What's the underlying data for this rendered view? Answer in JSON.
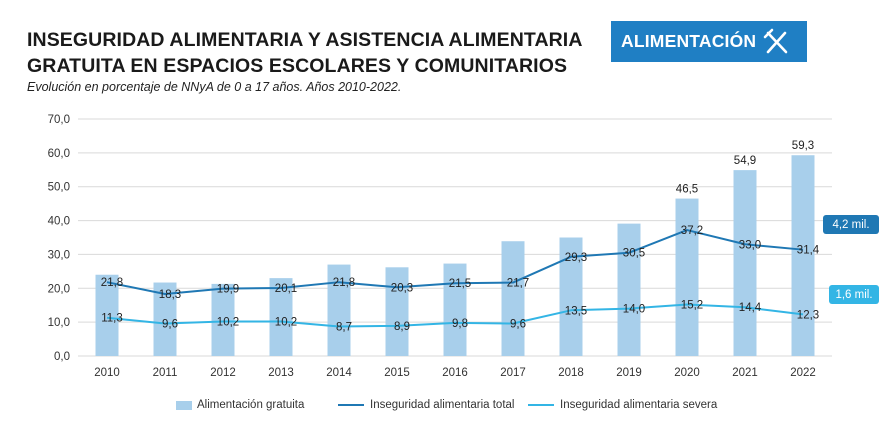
{
  "header": {
    "title_line1": "INSEGURIDAD ALIMENTARIA Y ASISTENCIA ALIMENTARIA",
    "title_line2": "GRATUITA EN ESPACIOS ESCOLARES Y COMUNITARIOS",
    "subtitle": "Evolución en porcentaje de NNyA de 0 a 17 años. Años 2010-2022.",
    "badge_label": "ALIMENTACIÓN",
    "badge_icon": "fork-knife-icon"
  },
  "colors": {
    "bar": "#a8cfeb",
    "total_line": "#1f78b4",
    "severe_line": "#33b5e5",
    "badge": "#1f7fc4",
    "grid": "#d9d9d9"
  },
  "chart_data": {
    "type": "bar+line",
    "categories": [
      "2010",
      "2011",
      "2012",
      "2013",
      "2014",
      "2015",
      "2016",
      "2017",
      "2018",
      "2019",
      "2020",
      "2021",
      "2022"
    ],
    "series": [
      {
        "name": "Alimentación gratuita",
        "kind": "bar",
        "values": [
          24.0,
          21.7,
          21.3,
          23.0,
          27.0,
          26.2,
          27.3,
          33.9,
          35.0,
          39.1,
          46.5,
          54.9,
          59.3
        ],
        "labels": [
          "",
          "",
          "",
          "",
          "",
          "",
          "",
          "",
          "",
          "",
          "46,5",
          "54,9",
          "59,3"
        ]
      },
      {
        "name": "Inseguridad alimentaria total",
        "kind": "line",
        "values": [
          21.8,
          18.3,
          19.9,
          20.1,
          21.8,
          20.3,
          21.5,
          21.7,
          29.3,
          30.5,
          37.2,
          33.0,
          31.4
        ],
        "labels": [
          "21,8",
          "18,3",
          "19,9",
          "20,1",
          "21,8",
          "20,3",
          "21,5",
          "21,7",
          "29,3",
          "30,5",
          "37,2",
          "33,0",
          "31,4"
        ]
      },
      {
        "name": "Inseguridad alimentaria severa",
        "kind": "line",
        "values": [
          11.3,
          9.6,
          10.2,
          10.2,
          8.7,
          8.9,
          9.8,
          9.6,
          13.5,
          14.0,
          15.2,
          14.4,
          12.3
        ],
        "labels": [
          "11,3",
          "9,6",
          "10,2",
          "10,2",
          "8,7",
          "8,9",
          "9,8",
          "9,6",
          "13,5",
          "14,0",
          "15,2",
          "14,4",
          "12,3"
        ]
      }
    ],
    "y_ticks": [
      "0,0",
      "10,0",
      "20,0",
      "30,0",
      "40,0",
      "50,0",
      "60,0",
      "70,0"
    ],
    "ylim": [
      0,
      70
    ],
    "grid": true,
    "legend_position": "bottom",
    "annotations": [
      {
        "text": "4,2 mil.",
        "series": "Inseguridad alimentaria total"
      },
      {
        "text": "1,6 mil.",
        "series": "Inseguridad alimentaria severa"
      }
    ]
  }
}
